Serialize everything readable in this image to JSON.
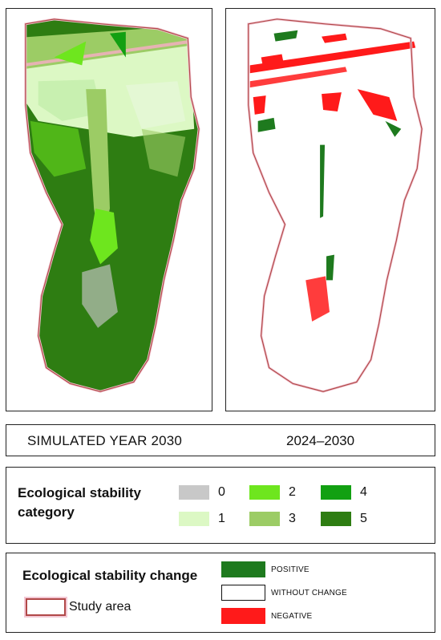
{
  "header": {
    "left_title": "SIMULATED YEAR 2030",
    "right_title": "2024–2030"
  },
  "category_legend": {
    "title": "Ecological stability category",
    "items": [
      {
        "label": "0",
        "color": "#c8c8c8"
      },
      {
        "label": "1",
        "color": "#dcf8c4"
      },
      {
        "label": "2",
        "color": "#6ee61e"
      },
      {
        "label": "3",
        "color": "#9ccc65"
      },
      {
        "label": "4",
        "color": "#12a012"
      },
      {
        "label": "5",
        "color": "#2e7d12"
      }
    ]
  },
  "change_legend": {
    "title": "Ecological stability change",
    "study_area_label": "Study area",
    "items": [
      {
        "label": "POSITIVE",
        "color": "#1e7a1e"
      },
      {
        "label": "WITHOUT CHANGE",
        "color": "#ffffff"
      },
      {
        "label": "NEGATIVE",
        "color": "#ff1a1a"
      }
    ]
  },
  "colors": {
    "boundary": "#b14848",
    "boundary_halo": "#f3c8d4",
    "forest": "#2e7d12",
    "pale": "#dcf8c4",
    "positive": "#1e7a1e",
    "negative": "#ff1a1a"
  }
}
